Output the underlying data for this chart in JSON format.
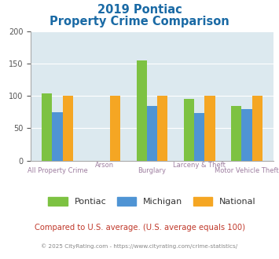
{
  "title_line1": "2019 Pontiac",
  "title_line2": "Property Crime Comparison",
  "categories": [
    "All Property Crime",
    "Arson",
    "Burglary",
    "Larceny & Theft",
    "Motor Vehicle Theft"
  ],
  "series": {
    "Pontiac": [
      104,
      0,
      155,
      95,
      84
    ],
    "Michigan": [
      75,
      0,
      84,
      73,
      80
    ],
    "National": [
      100,
      100,
      100,
      100,
      100
    ]
  },
  "colors": {
    "Pontiac": "#7dc242",
    "Michigan": "#4f94d4",
    "National": "#f5a623"
  },
  "ylim": [
    0,
    200
  ],
  "yticks": [
    0,
    50,
    100,
    150,
    200
  ],
  "plot_bg": "#dce9ef",
  "title_color": "#1a6aa5",
  "xlabel_color": "#9e7ea0",
  "footer_text": "Compared to U.S. average. (U.S. average equals 100)",
  "footer_color": "#c0392b",
  "copyright_text": "© 2025 CityRating.com - https://www.cityrating.com/crime-statistics/",
  "copyright_color": "#888888",
  "bar_width": 0.22
}
